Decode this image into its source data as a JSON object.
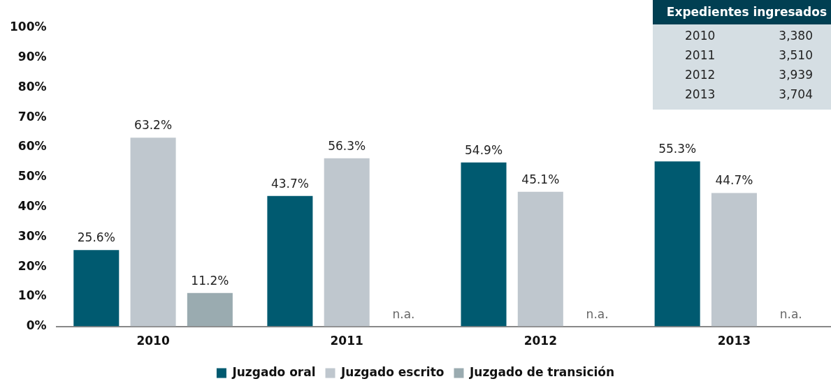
{
  "chart_data": [
    {
      "type": "bar",
      "categories": [
        "2010",
        "2011",
        "2012",
        "2013"
      ],
      "series": [
        {
          "name": "Juzgado oral",
          "color": "#005a70",
          "values": [
            25.6,
            43.7,
            54.9,
            55.3
          ],
          "value_labels": [
            "25.6%",
            "43.7%",
            "54.9%",
            "55.3%"
          ]
        },
        {
          "name": "Juzgado escrito",
          "color": "#bfc7ce",
          "values": [
            63.2,
            56.3,
            45.1,
            44.7
          ],
          "value_labels": [
            "63.2%",
            "56.3%",
            "45.1%",
            "44.7%"
          ]
        },
        {
          "name": "Juzgado de transición",
          "color": "#9aabb0",
          "values": [
            11.2,
            null,
            null,
            null
          ],
          "value_labels": [
            "11.2%",
            "n.a.",
            "n.a.",
            "n.a."
          ]
        }
      ],
      "ylim": [
        0,
        100
      ],
      "yticks": [
        {
          "value": 0,
          "label": "0%"
        },
        {
          "value": 10,
          "label": "10%"
        },
        {
          "value": 20,
          "label": "20%"
        },
        {
          "value": 30,
          "label": "30%"
        },
        {
          "value": 40,
          "label": "40%"
        },
        {
          "value": 50,
          "label": "50%"
        },
        {
          "value": 60,
          "label": "60%"
        },
        {
          "value": 70,
          "label": "70%"
        },
        {
          "value": 80,
          "label": "80%"
        },
        {
          "value": 90,
          "label": "90%"
        },
        {
          "value": 100,
          "label": "100%"
        }
      ],
      "grid": false,
      "legend": "bottom",
      "annotations": [
        "Expedientes ingresados",
        "2010",
        "3,380",
        "2011",
        "3,510",
        "2012",
        "3,939",
        "2013",
        "3,704"
      ]
    }
  ]
}
